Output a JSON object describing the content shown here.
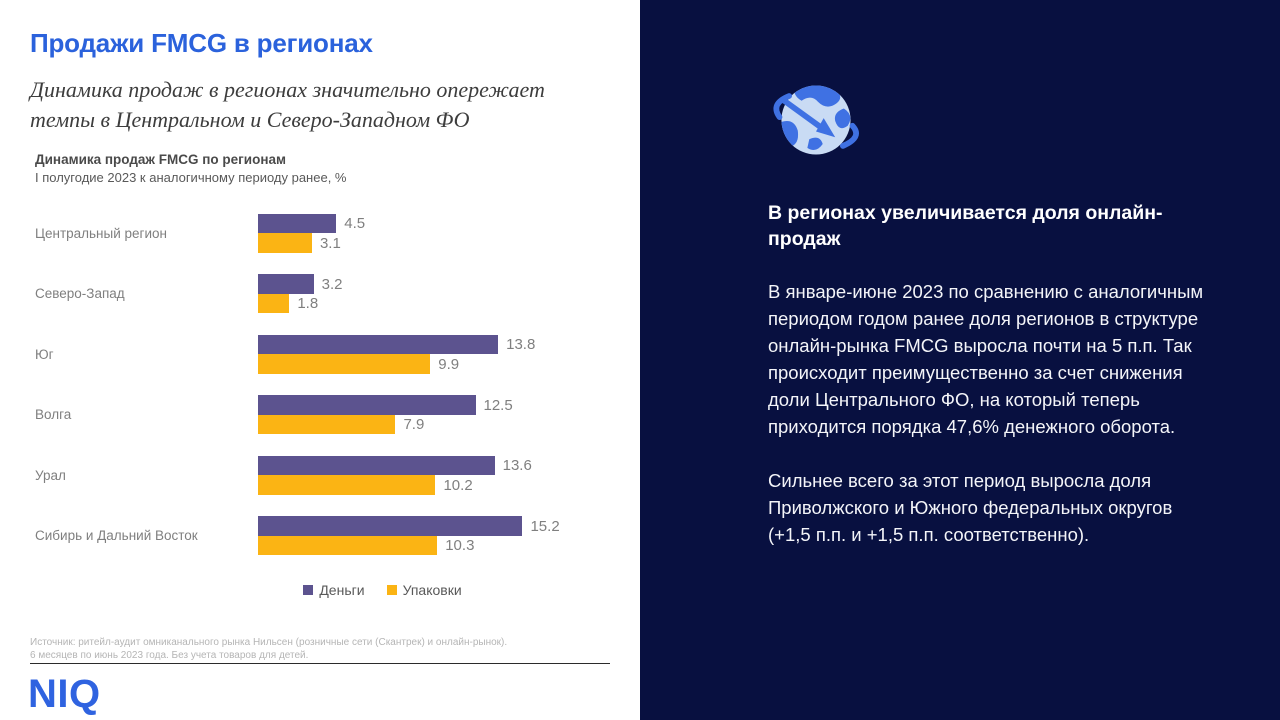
{
  "left": {
    "title": "Продажи FMCG в регионах",
    "subtitle": "Динамика продаж в регионах значительно опережает темпы в Центральном и Северо-Западном ФО",
    "source_line1": "Источник: ритейл-аудит омниканального рынка Нильсен (розничные сети (Скантрек) и онлайн-рынок).",
    "source_line2": "6 месяцев по июнь 2023 года. Без учета товаров для детей.",
    "logo": "NIQ"
  },
  "chart_data": {
    "type": "bar",
    "orientation": "horizontal",
    "title": "Динамика продаж FMCG по регионам",
    "subtitle": "I полугодие 2023 к аналогичному периоду ранее, %",
    "categories": [
      "Центральный регион",
      "Северо-Запад",
      "Юг",
      "Волга",
      "Урал",
      "Сибирь и Дальний Восток"
    ],
    "series": [
      {
        "name": "Деньги",
        "color": "#5C538F",
        "values": [
          4.5,
          3.2,
          13.8,
          12.5,
          13.6,
          15.2
        ]
      },
      {
        "name": "Упаковки",
        "color": "#FBB414",
        "values": [
          3.1,
          1.8,
          9.9,
          7.9,
          10.2,
          10.3
        ]
      }
    ],
    "xlim": [
      0,
      16.5
    ],
    "value_labels": true,
    "grid": false,
    "legend_position": "bottom"
  },
  "right": {
    "icon": "globe-arrow-icon",
    "heading": "В регионах увеличивается доля онлайн-продаж",
    "paragraphs": [
      "В январе-июне 2023 по сравнению с аналогичным периодом годом ранее доля регионов в структуре онлайн-рынка FMCG выросла почти на 5 п.п. Так происходит преимущественно за счет снижения доли Центрального ФО, на который теперь приходится порядка 47,6% денежного оборота.",
      "Сильнее всего за этот период выросла доля Приволжского и Южного федеральных округов (+1,5 п.п. и +1,5 п.п. соответственно)."
    ]
  },
  "colors": {
    "title_blue": "#2B62DC",
    "bar_money": "#5C538F",
    "bar_packs": "#FBB414",
    "panel_navy": "#081040",
    "logo_blue": "#2F63E0",
    "icon_globe_light": "#C9DBF4",
    "icon_globe_dark": "#3F71E3"
  }
}
